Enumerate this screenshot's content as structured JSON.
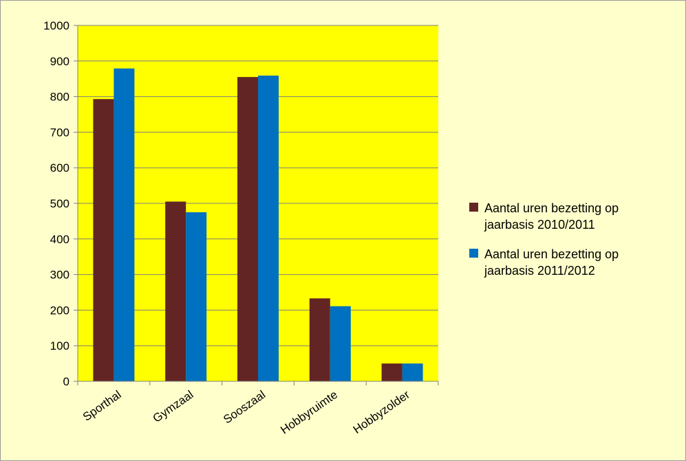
{
  "chart_data": {
    "type": "bar",
    "categories": [
      "Sporthal",
      "Gymzaal",
      "Sooszaal",
      "Hobbyruimte",
      "Hobbyzolder"
    ],
    "series": [
      {
        "name": "Aantal uren bezetting op jaarbasis 2010/2011",
        "legend_lines": [
          "Aantal uren bezetting op",
          "jaarbasis 2010/2011"
        ],
        "color": "#632523",
        "values": [
          793,
          505,
          855,
          233,
          50
        ]
      },
      {
        "name": "Aantal uren bezetting op jaarbasis 2011/2012",
        "legend_lines": [
          "Aantal uren bezetting op",
          "jaarbasis 2011/2012"
        ],
        "color": "#0070c0",
        "values": [
          879,
          475,
          859,
          211,
          50
        ]
      }
    ],
    "y_ticks": [
      "0",
      "100",
      "200",
      "300",
      "400",
      "500",
      "600",
      "700",
      "800",
      "900",
      "1000"
    ],
    "ylim": [
      0,
      1000
    ],
    "grid": true,
    "legend_position": "right",
    "plot_background": "#ffff00",
    "page_background": "#ffffcc"
  }
}
